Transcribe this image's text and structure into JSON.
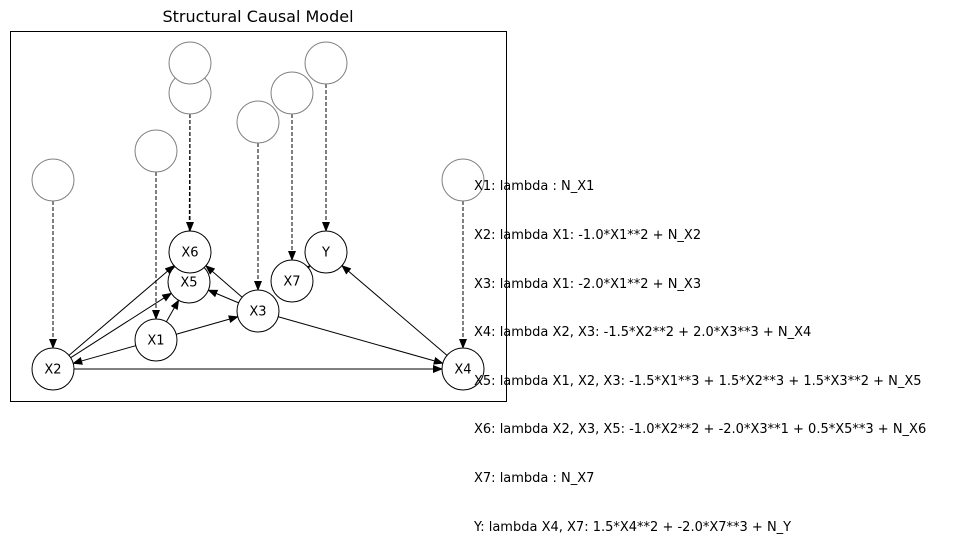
{
  "title": "Structural Causal Model",
  "nodes": [
    {
      "id": "X1",
      "label": "X1"
    },
    {
      "id": "X2",
      "label": "X2"
    },
    {
      "id": "X3",
      "label": "X3"
    },
    {
      "id": "X4",
      "label": "X4"
    },
    {
      "id": "X5",
      "label": "X5"
    },
    {
      "id": "X6",
      "label": "X6"
    },
    {
      "id": "X7",
      "label": "X7"
    },
    {
      "id": "Y",
      "label": "Y"
    }
  ],
  "noise_nodes": [
    "N_X1",
    "N_X2",
    "N_X3",
    "N_X4",
    "N_X5",
    "N_X6",
    "N_X7",
    "N_Y"
  ],
  "edges": [
    {
      "from": "X1",
      "to": "X2"
    },
    {
      "from": "X1",
      "to": "X3"
    },
    {
      "from": "X1",
      "to": "X5"
    },
    {
      "from": "X2",
      "to": "X4"
    },
    {
      "from": "X2",
      "to": "X5"
    },
    {
      "from": "X2",
      "to": "X6"
    },
    {
      "from": "X3",
      "to": "X4"
    },
    {
      "from": "X3",
      "to": "X5"
    },
    {
      "from": "X3",
      "to": "X6"
    },
    {
      "from": "X5",
      "to": "X6"
    },
    {
      "from": "X4",
      "to": "Y"
    },
    {
      "from": "X7",
      "to": "Y"
    }
  ],
  "equations": [
    "X1: lambda : N_X1",
    "X2: lambda X1: -1.0*X1**2 + N_X2",
    "X3: lambda X1: -2.0*X1**2 + N_X3",
    "X4: lambda X2, X3: -1.5*X2**2 + 2.0*X3**3 + N_X4",
    "X5: lambda X1, X2, X3: -1.5*X1**3 + 1.5*X2**3 + 1.5*X3**2 + N_X5",
    "X6: lambda X2, X3, X5: -1.0*X2**2 + -2.0*X3**1 + 0.5*X5**3 + N_X6",
    "X7: lambda : N_X7",
    "Y: lambda X4, X7: 1.5*X4**2 + -2.0*X7**3 + N_Y"
  ]
}
